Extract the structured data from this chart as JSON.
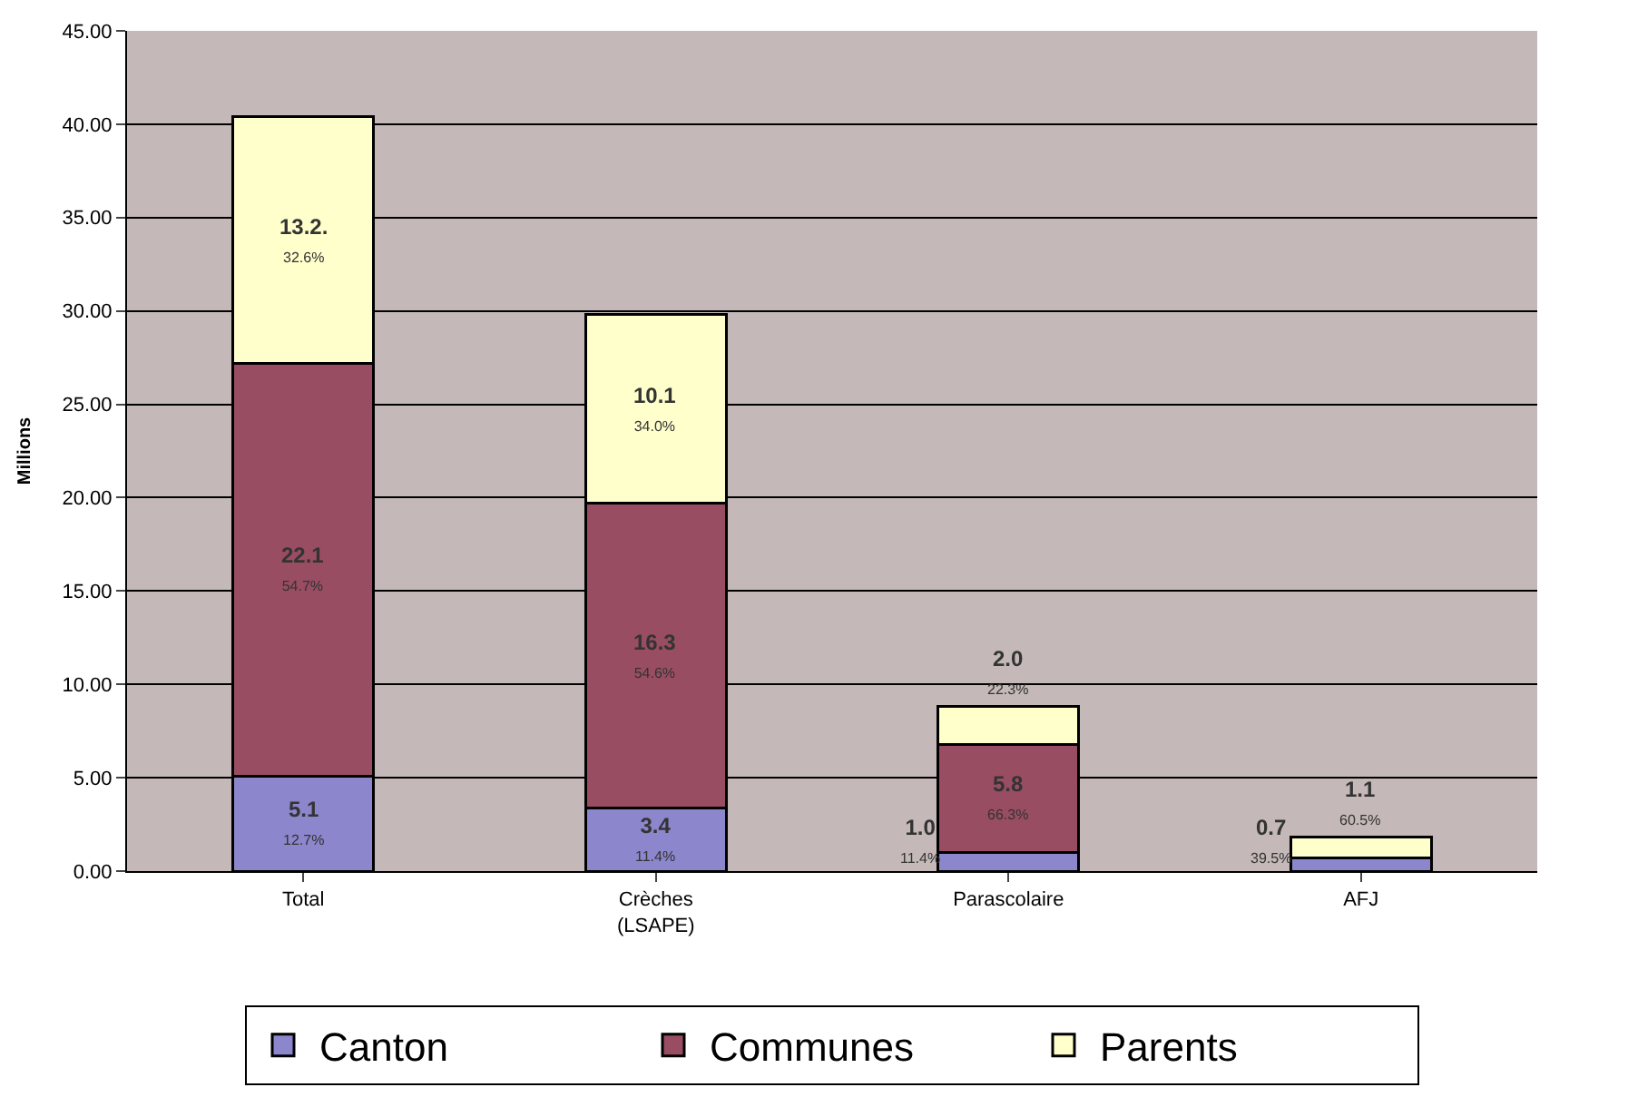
{
  "chart_data": {
    "type": "bar",
    "stacked": true,
    "ylabel": "Millions",
    "categories": [
      "Total",
      "Crèches\n(LSAPE)",
      "Parascolaire",
      "AFJ"
    ],
    "series": [
      {
        "name": "Canton",
        "color": "#8c86cc",
        "values": [
          5.1,
          3.4,
          1.0,
          0.7
        ],
        "value_labels": [
          "5.1\n12.7%",
          "3.4\n11.4%",
          "1.0\n11.4%",
          "0.7\n39.5%"
        ]
      },
      {
        "name": "Communes",
        "color": "#994d63",
        "values": [
          22.1,
          16.3,
          5.8,
          null
        ],
        "value_labels": [
          "22.1\n54.7%",
          "16.3\n54.6%",
          "5.8\n66.3%",
          null
        ]
      },
      {
        "name": "Parents",
        "color": "#ffffcc",
        "values": [
          13.2,
          10.1,
          2.0,
          1.1
        ],
        "value_labels": [
          "13.2.\n32.6%",
          "10.1\n34.0%",
          "2.0\n22.3%",
          "1.1\n60.5%"
        ]
      }
    ],
    "ylim": [
      0,
      45
    ],
    "yticks": [
      {
        "value": 0,
        "label": "0.00"
      },
      {
        "value": 5,
        "label": "5.00"
      },
      {
        "value": 10,
        "label": "10.00"
      },
      {
        "value": 15,
        "label": "15.00"
      },
      {
        "value": 20,
        "label": "20.00"
      },
      {
        "value": 25,
        "label": "25.00"
      },
      {
        "value": 30,
        "label": "30.00"
      },
      {
        "value": 35,
        "label": "35.00"
      },
      {
        "value": 40,
        "label": "40.00"
      },
      {
        "value": 45,
        "label": "45.00"
      }
    ],
    "grid": "y",
    "legend": "bottom"
  }
}
